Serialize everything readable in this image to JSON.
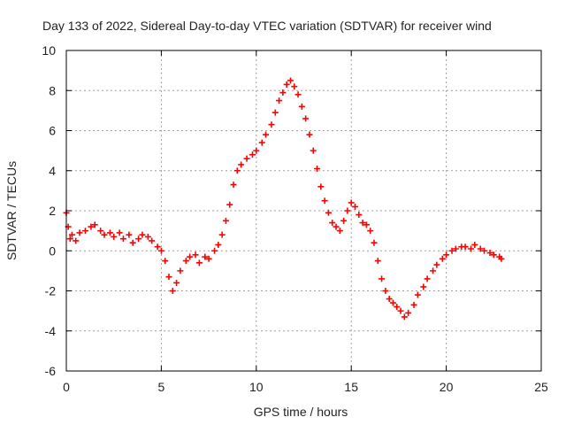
{
  "chart_data": {
    "type": "scatter",
    "title": "Day 133 of 2022, Sidereal Day-to-day VTEC variation (SDTVAR) for receiver wind",
    "xlabel": "GPS time / hours",
    "ylabel": "SDTVAR / TECUs",
    "xlim": [
      0,
      25
    ],
    "ylim": [
      -6,
      10
    ],
    "xticks": [
      "0",
      "5",
      "10",
      "15",
      "20",
      "25"
    ],
    "yticks": [
      "-6",
      "-4",
      "-2",
      "0",
      "2",
      "4",
      "6",
      "8",
      "10"
    ],
    "grid": true,
    "marker": "+",
    "series": [
      {
        "name": "SDTVAR",
        "color": "#ff0000",
        "x": [
          0.0,
          0.1,
          0.2,
          0.3,
          0.5,
          0.7,
          1.0,
          1.3,
          1.5,
          1.8,
          2.0,
          2.3,
          2.5,
          2.8,
          3.0,
          3.3,
          3.5,
          3.8,
          4.0,
          4.3,
          4.5,
          4.8,
          5.0,
          5.2,
          5.4,
          5.6,
          5.8,
          6.0,
          6.3,
          6.5,
          6.8,
          7.0,
          7.3,
          7.5,
          7.8,
          8.0,
          8.2,
          8.4,
          8.6,
          8.8,
          9.0,
          9.2,
          9.5,
          9.8,
          10.0,
          10.3,
          10.5,
          10.8,
          11.0,
          11.2,
          11.4,
          11.6,
          11.8,
          12.0,
          12.2,
          12.4,
          12.6,
          12.8,
          13.0,
          13.2,
          13.4,
          13.6,
          13.8,
          14.0,
          14.2,
          14.4,
          14.6,
          14.8,
          15.0,
          15.2,
          15.4,
          15.6,
          15.8,
          16.0,
          16.2,
          16.4,
          16.6,
          16.8,
          17.0,
          17.2,
          17.4,
          17.6,
          17.8,
          18.0,
          18.3,
          18.5,
          18.8,
          19.0,
          19.3,
          19.5,
          19.8,
          20.0,
          20.3,
          20.5,
          20.8,
          21.0,
          21.3,
          21.5,
          21.8,
          22.0,
          22.3,
          22.5,
          22.8,
          22.9
        ],
        "y": [
          1.9,
          1.2,
          0.6,
          0.8,
          0.5,
          0.9,
          1.0,
          1.2,
          1.3,
          1.0,
          0.8,
          0.9,
          0.7,
          0.9,
          0.6,
          0.8,
          0.4,
          0.6,
          0.8,
          0.7,
          0.5,
          0.2,
          0.0,
          -0.5,
          -1.3,
          -2.0,
          -1.6,
          -1.0,
          -0.5,
          -0.3,
          -0.2,
          -0.6,
          -0.3,
          -0.4,
          0.0,
          0.3,
          0.8,
          1.5,
          2.3,
          3.3,
          4.0,
          4.3,
          4.6,
          4.8,
          5.0,
          5.4,
          5.8,
          6.3,
          6.9,
          7.5,
          7.9,
          8.3,
          8.5,
          8.2,
          7.8,
          7.2,
          6.6,
          5.8,
          5.0,
          4.1,
          3.2,
          2.5,
          1.9,
          1.4,
          1.2,
          1.0,
          1.5,
          2.0,
          2.4,
          2.2,
          1.8,
          1.4,
          1.3,
          1.0,
          0.4,
          -0.5,
          -1.4,
          -2.0,
          -2.4,
          -2.6,
          -2.8,
          -3.0,
          -3.3,
          -3.1,
          -2.7,
          -2.2,
          -1.8,
          -1.4,
          -1.0,
          -0.7,
          -0.4,
          -0.2,
          0.0,
          0.1,
          0.2,
          0.2,
          0.1,
          0.3,
          0.1,
          0.0,
          -0.1,
          -0.2,
          -0.3,
          -0.4
        ]
      }
    ]
  }
}
